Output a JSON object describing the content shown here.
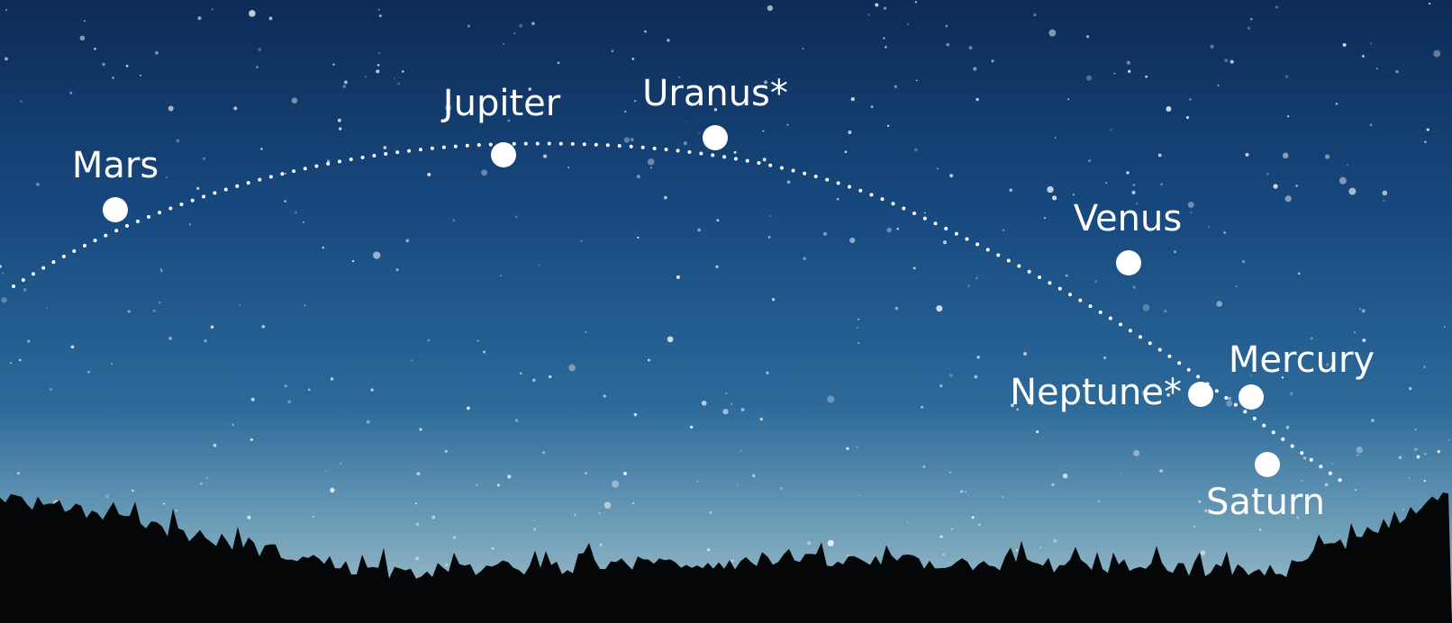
{
  "planets": [
    {
      "label": "Mars"
    },
    {
      "label": "Jupiter"
    },
    {
      "label": "Uranus*"
    },
    {
      "label": "Venus"
    },
    {
      "label": "Neptune*"
    },
    {
      "label": "Mercury"
    },
    {
      "label": "Saturn"
    }
  ]
}
